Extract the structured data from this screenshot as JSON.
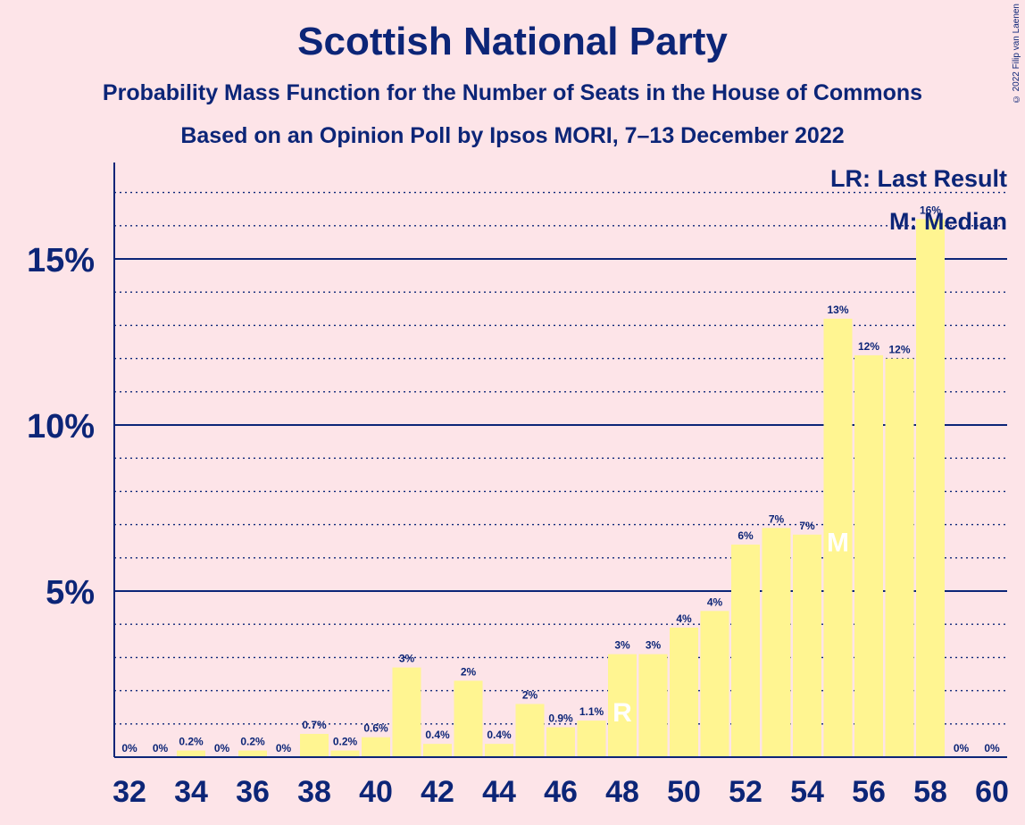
{
  "title": "Scottish National Party",
  "subtitle1": "Probability Mass Function for the Number of Seats in the House of Commons",
  "subtitle2": "Based on an Opinion Poll by Ipsos MORI, 7–13 December 2022",
  "copyright": "© 2022 Filip van Laenen",
  "colors": {
    "background": "#fde4e8",
    "bar": "#fff591",
    "text": "#0c2577"
  },
  "chart_data": {
    "type": "bar",
    "x": [
      32,
      33,
      34,
      35,
      36,
      37,
      38,
      39,
      40,
      41,
      42,
      43,
      44,
      45,
      46,
      47,
      48,
      49,
      50,
      51,
      52,
      53,
      54,
      55,
      56,
      57,
      58,
      59,
      60
    ],
    "values": [
      0,
      0,
      0.2,
      0,
      0.2,
      0,
      0.7,
      0.2,
      0.6,
      2.7,
      0.4,
      2.3,
      0.4,
      1.6,
      0.9,
      1.1,
      3.1,
      3.1,
      3.9,
      4.4,
      6.4,
      6.9,
      6.7,
      13.2,
      12.1,
      12.0,
      16.2,
      0,
      0
    ],
    "data_labels": [
      "0%",
      "0%",
      "0.2%",
      "0%",
      "0.2%",
      "0%",
      "0.7%",
      "0.2%",
      "0.6%",
      "3%",
      "0.4%",
      "2%",
      "0.4%",
      "2%",
      "0.9%",
      "1.1%",
      "3%",
      "3%",
      "4%",
      "4%",
      "6%",
      "7%",
      "7%",
      "13%",
      "12%",
      "12%",
      "16%",
      "0%",
      "0%"
    ],
    "x_tick_labels": [
      "32",
      "34",
      "36",
      "38",
      "40",
      "42",
      "44",
      "46",
      "48",
      "50",
      "52",
      "54",
      "56",
      "58",
      "60"
    ],
    "y_tick_labels": [
      "5%",
      "10%",
      "15%"
    ],
    "ylim": [
      0,
      18
    ],
    "last_result": 48,
    "last_result_marker": "LR",
    "median": 55,
    "median_marker": "M",
    "legend": {
      "lr": "LR: Last Result",
      "m": "M: Median",
      "position": "top-right"
    },
    "grid": true
  }
}
